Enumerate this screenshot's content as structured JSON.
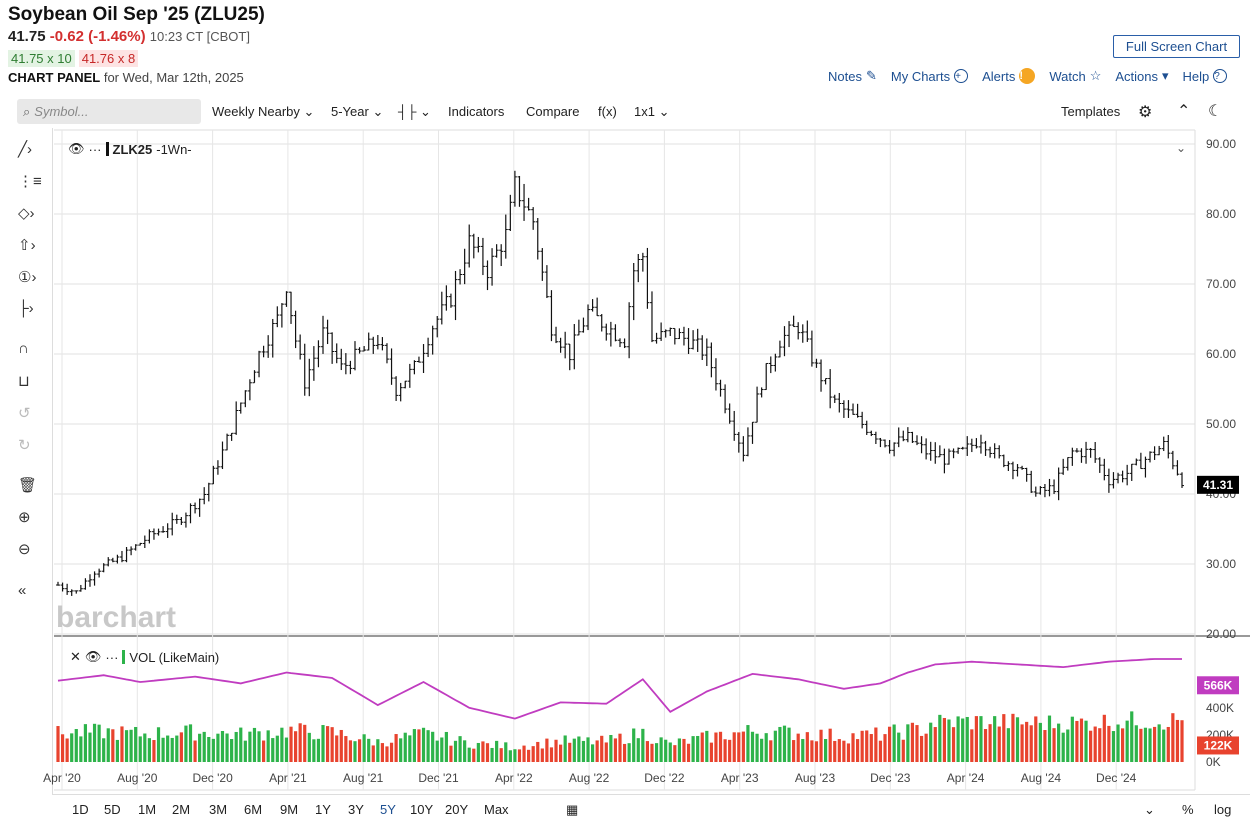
{
  "header": {
    "title": "Soybean Oil Sep '25 (ZLU25)",
    "last": "41.75",
    "change": "-0.62 (-1.46%)",
    "time": "10:23 CT [CBOT]",
    "bid": "41.75 x 10",
    "ask": "41.76 x 8",
    "panel_label": "CHART PANEL",
    "panel_date": "for Wed, Mar 12th, 2025",
    "fullscreen": "Full Screen Chart"
  },
  "tools": {
    "notes": "Notes",
    "my_charts": "My Charts",
    "alerts": "Alerts",
    "watch": "Watch",
    "actions": "Actions",
    "help": "Help"
  },
  "toolbar": {
    "search_placeholder": "Symbol...",
    "interval": "Weekly Nearby",
    "range": "5-Year",
    "indicators": "Indicators",
    "compare": "Compare",
    "fx": "f(x)",
    "layout": "1x1",
    "templates": "Templates"
  },
  "legend": {
    "symbol": "ZLK25",
    "interval": "-1Wn-",
    "vol": "VOL (LikeMain)"
  },
  "watermark": "barchart",
  "periods": [
    "1D",
    "5D",
    "1M",
    "2M",
    "3M",
    "6M",
    "9M",
    "1Y",
    "3Y",
    "5Y",
    "10Y",
    "20Y",
    "Max"
  ],
  "bottom_right": {
    "pct": "%",
    "log": "log"
  },
  "colors": {
    "up": "#2db34a",
    "down": "#e8432e",
    "vol_ma": "#c03cc0",
    "price": "#111111",
    "accent": "#1d4f91"
  },
  "chart_data": {
    "type": "bar",
    "subtype": "ohlc-weekly",
    "series_name": "ZLK25",
    "x_tick_labels": [
      "Apr '20",
      "Aug '20",
      "Dec '20",
      "Apr '21",
      "Aug '21",
      "Dec '21",
      "Apr '22",
      "Aug '22",
      "Dec '22",
      "Apr '23",
      "Aug '23",
      "Dec '23",
      "Apr '24",
      "Aug '24",
      "Dec '24"
    ],
    "y_ticks": [
      "20.00",
      "30.00",
      "40.00",
      "50.00",
      "60.00",
      "70.00",
      "80.00",
      "90.00"
    ],
    "ylim": [
      20,
      92
    ],
    "last_price_label": "41.31",
    "closes_knots": [
      [
        0,
        27
      ],
      [
        4,
        26
      ],
      [
        8,
        29
      ],
      [
        14,
        31
      ],
      [
        20,
        34
      ],
      [
        26,
        36
      ],
      [
        32,
        40
      ],
      [
        36,
        46
      ],
      [
        40,
        53
      ],
      [
        44,
        60
      ],
      [
        48,
        65
      ],
      [
        50,
        70
      ],
      [
        52,
        62
      ],
      [
        54,
        56
      ],
      [
        58,
        63
      ],
      [
        62,
        58
      ],
      [
        66,
        60
      ],
      [
        70,
        62
      ],
      [
        74,
        55
      ],
      [
        78,
        58
      ],
      [
        82,
        64
      ],
      [
        86,
        68
      ],
      [
        90,
        76
      ],
      [
        94,
        72
      ],
      [
        98,
        77
      ],
      [
        100,
        84
      ],
      [
        104,
        79
      ],
      [
        108,
        64
      ],
      [
        112,
        60
      ],
      [
        116,
        66
      ],
      [
        120,
        64
      ],
      [
        124,
        62
      ],
      [
        126,
        72
      ],
      [
        128,
        74
      ],
      [
        130,
        62
      ],
      [
        134,
        63
      ],
      [
        138,
        62
      ],
      [
        142,
        60
      ],
      [
        146,
        53
      ],
      [
        150,
        46
      ],
      [
        154,
        56
      ],
      [
        158,
        62
      ],
      [
        162,
        64
      ],
      [
        166,
        58
      ],
      [
        170,
        53
      ],
      [
        174,
        51
      ],
      [
        178,
        49
      ],
      [
        182,
        47
      ],
      [
        186,
        48
      ],
      [
        190,
        46
      ],
      [
        194,
        45
      ],
      [
        198,
        46
      ],
      [
        202,
        48
      ],
      [
        206,
        45
      ],
      [
        210,
        44
      ],
      [
        214,
        40
      ],
      [
        218,
        41
      ],
      [
        222,
        46
      ],
      [
        226,
        46
      ],
      [
        230,
        42
      ],
      [
        234,
        43
      ],
      [
        238,
        45
      ],
      [
        242,
        47
      ],
      [
        246,
        42
      ]
    ],
    "volume_ticks": [
      "0K",
      "200K",
      "400K"
    ],
    "volume_current_label": "122K",
    "volume_ma_label": "566K",
    "vol_ma_knots": [
      [
        0,
        600
      ],
      [
        10,
        640
      ],
      [
        18,
        590
      ],
      [
        30,
        630
      ],
      [
        40,
        580
      ],
      [
        50,
        660
      ],
      [
        60,
        620
      ],
      [
        70,
        420
      ],
      [
        80,
        590
      ],
      [
        90,
        400
      ],
      [
        100,
        320
      ],
      [
        110,
        440
      ],
      [
        120,
        430
      ],
      [
        128,
        610
      ],
      [
        134,
        370
      ],
      [
        142,
        520
      ],
      [
        152,
        650
      ],
      [
        162,
        610
      ],
      [
        172,
        540
      ],
      [
        180,
        580
      ],
      [
        186,
        660
      ],
      [
        192,
        720
      ],
      [
        200,
        740
      ],
      [
        210,
        720
      ],
      [
        220,
        700
      ],
      [
        230,
        740
      ],
      [
        240,
        760
      ],
      [
        246,
        760
      ]
    ]
  }
}
